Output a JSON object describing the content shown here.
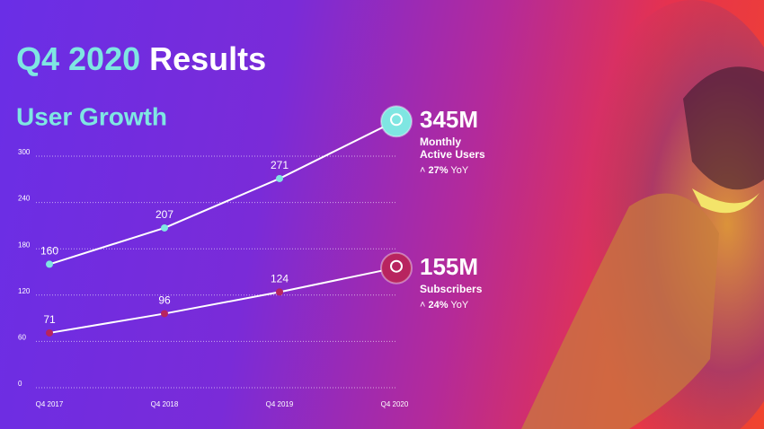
{
  "headline": [
    "Q4 2020",
    "Results"
  ],
  "chart_data": {
    "type": "line",
    "title": "User Growth",
    "categories": [
      "Q4 2017",
      "Q4 2018",
      "Q4 2019",
      "Q4 2020"
    ],
    "series": [
      {
        "name": "Monthly Active Users",
        "color": "#7fe6e2",
        "values": [
          160,
          207,
          271,
          345
        ],
        "value_labels": [
          "160",
          "207",
          "271",
          "345M"
        ],
        "yoy": "27%",
        "yoy_unit": "YoY"
      },
      {
        "name": "Subscribers",
        "color": "#b8245f",
        "values": [
          71,
          96,
          124,
          155
        ],
        "value_labels": [
          "71",
          "96",
          "124",
          "155M"
        ],
        "yoy": "24%",
        "yoy_unit": "YoY"
      }
    ],
    "ylim": [
      0,
      350
    ],
    "yticks": [
      0,
      60,
      120,
      180,
      240,
      300
    ],
    "grid": true
  }
}
